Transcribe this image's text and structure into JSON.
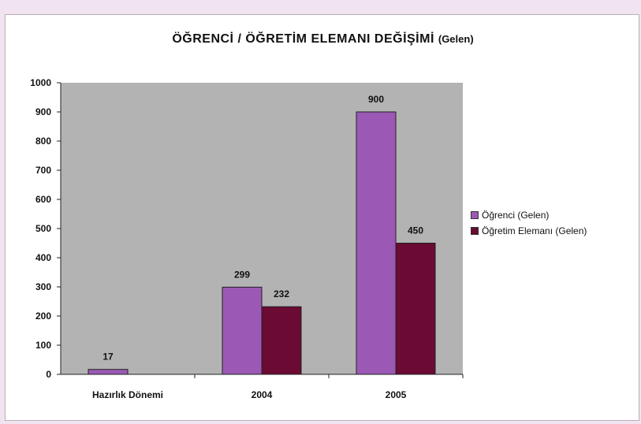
{
  "chart_data": {
    "type": "bar",
    "title": "ÖĞRENCİ / ÖĞRETİM ELEMANI DEĞİŞİMİ",
    "title_suffix": "(Gelen)",
    "categories": [
      "Hazırlık Dönemi",
      "2004",
      "2005"
    ],
    "series": [
      {
        "name": "Öğrenci (Gelen)",
        "values": [
          17,
          299,
          900
        ],
        "labels": [
          "17",
          "299",
          "900"
        ],
        "color": "#9b59b5"
      },
      {
        "name": "Öğretim Elemanı (Gelen)",
        "values": [
          null,
          232,
          450
        ],
        "labels": [
          "",
          "232",
          "450"
        ],
        "color": "#6b0a33"
      }
    ],
    "ylim": [
      0,
      1000
    ],
    "yticks": [
      0,
      100,
      200,
      300,
      400,
      500,
      600,
      700,
      800,
      900,
      1000
    ],
    "grid": false,
    "legend": "right",
    "plot_background": "#b3b3b3"
  }
}
